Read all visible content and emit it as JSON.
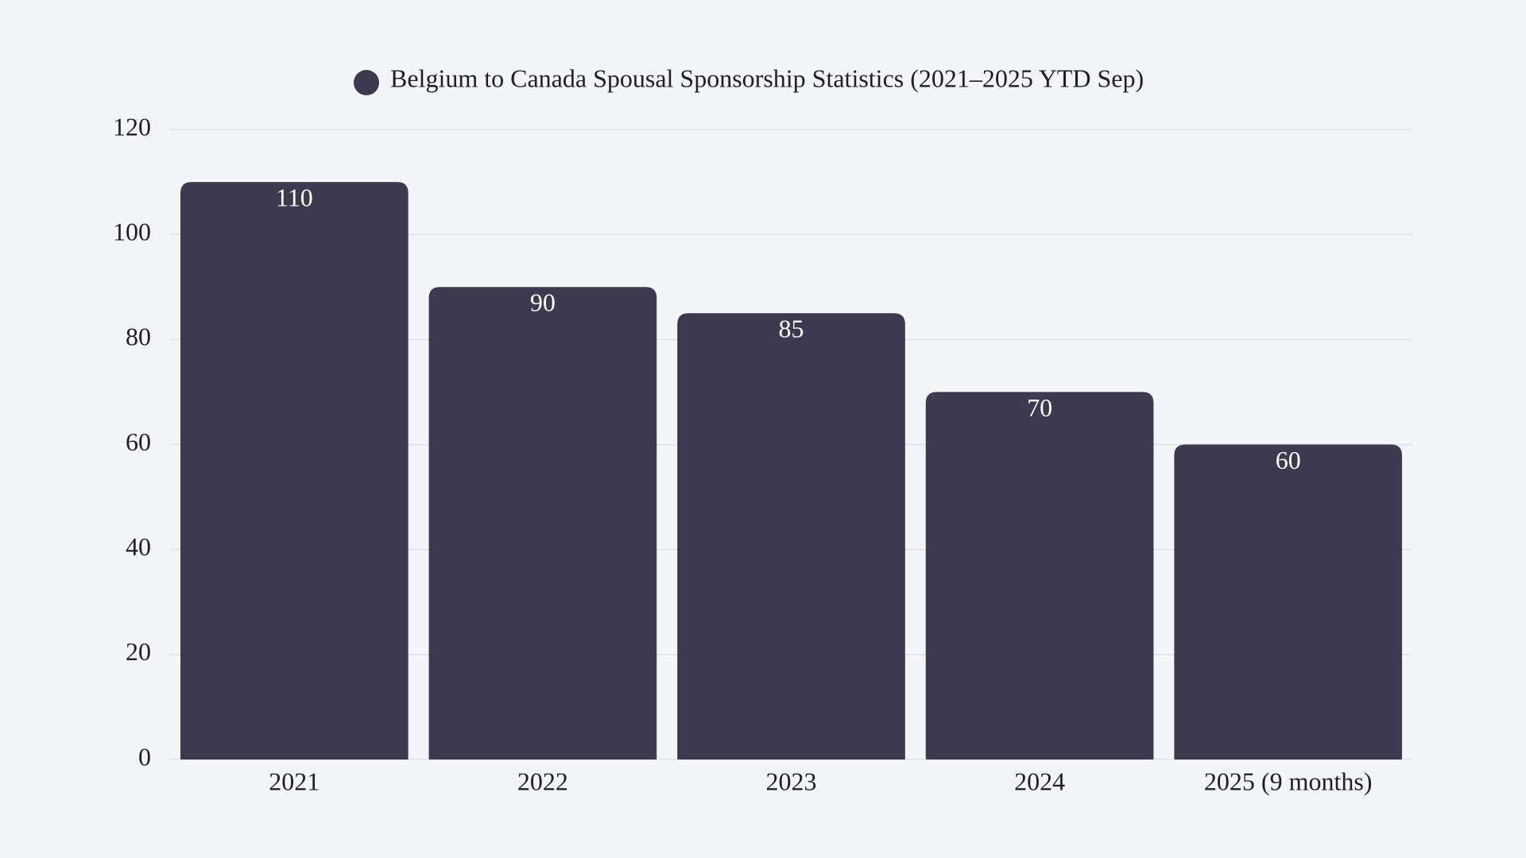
{
  "chart_data": {
    "type": "bar",
    "categories": [
      "2021",
      "2022",
      "2023",
      "2024",
      "2025 (9 months)"
    ],
    "series": [
      {
        "name": "Belgium to Canada Spousal Sponsorship Statistics (2021–2025 YTD Sep)",
        "color": "#3d3a50",
        "values": [
          110,
          90,
          85,
          70,
          60
        ]
      }
    ],
    "ylim": [
      0,
      120
    ],
    "yticks": [
      0,
      20,
      40,
      60,
      80,
      100,
      120
    ],
    "grid": true,
    "legend": "top"
  }
}
